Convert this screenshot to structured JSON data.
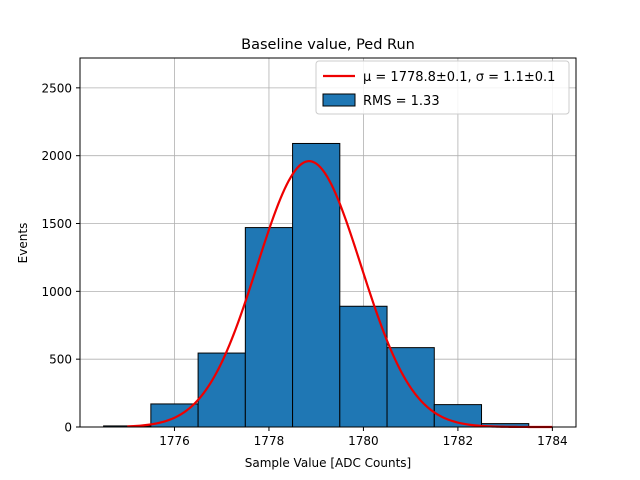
{
  "chart_data": {
    "type": "bar",
    "title": "Baseline value, Ped Run",
    "xlabel": "Sample Value [ADC Counts]",
    "ylabel": "Events",
    "xlim": [
      1774.0,
      1784.5
    ],
    "ylim": [
      0,
      2720
    ],
    "xticks": [
      1776,
      1778,
      1780,
      1782,
      1784
    ],
    "yticks": [
      0,
      500,
      1000,
      1500,
      2000,
      2500
    ],
    "grid": true,
    "legend_position": "top-right",
    "histogram": {
      "name": "RMS = 1.33",
      "color": "#1f77b4",
      "edgecolor": "#000000",
      "bins": [
        {
          "x0": 1774.5,
          "x1": 1775.5,
          "value": 8
        },
        {
          "x0": 1775.5,
          "x1": 1776.5,
          "value": 170
        },
        {
          "x0": 1776.5,
          "x1": 1777.5,
          "value": 545
        },
        {
          "x0": 1777.5,
          "x1": 1778.5,
          "value": 1470
        },
        {
          "x0": 1778.5,
          "x1": 1779.5,
          "value": 2090
        },
        {
          "x0": 1779.5,
          "x1": 1780.5,
          "value": 890
        },
        {
          "x0": 1780.5,
          "x1": 1781.5,
          "value": 585
        },
        {
          "x0": 1781.5,
          "x1": 1782.5,
          "value": 165
        },
        {
          "x0": 1782.5,
          "x1": 1783.5,
          "value": 25
        },
        {
          "x0": 1783.5,
          "x1": 1784.5,
          "value": 0
        }
      ]
    },
    "fit": {
      "name": "μ = 1778.8±0.1, σ = 1.1±0.1",
      "type": "gaussian",
      "color": "#ee0000",
      "mu": 1778.85,
      "sigma": 1.1,
      "amplitude": 1960,
      "x_range": [
        1775.0,
        1784.0
      ]
    }
  }
}
